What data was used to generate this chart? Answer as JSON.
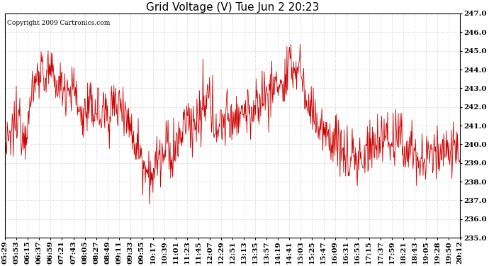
{
  "title": "Grid Voltage (V) Tue Jun 2 20:23",
  "copyright": "Copyright 2009 Cartronics.com",
  "line_color": "#cc0000",
  "bg_color": "#ffffff",
  "plot_bg_color": "#ffffff",
  "grid_color": "#bbbbbb",
  "ylim": [
    235.0,
    247.0
  ],
  "ytick_min": 235.0,
  "ytick_max": 247.0,
  "ytick_step": 1.0,
  "xtick_labels": [
    "05:29",
    "05:53",
    "06:15",
    "06:37",
    "06:59",
    "07:21",
    "07:43",
    "08:05",
    "08:27",
    "08:49",
    "09:11",
    "09:33",
    "09:55",
    "10:17",
    "10:39",
    "11:01",
    "11:23",
    "11:45",
    "12:07",
    "12:29",
    "12:51",
    "13:13",
    "13:35",
    "13:57",
    "14:19",
    "14:41",
    "15:03",
    "15:25",
    "15:47",
    "16:09",
    "16:31",
    "16:53",
    "17:15",
    "17:37",
    "17:59",
    "18:21",
    "18:43",
    "19:05",
    "19:28",
    "19:50",
    "20:12"
  ],
  "title_fontsize": 11,
  "tick_fontsize": 7.5,
  "copyright_fontsize": 6.5,
  "n_points": 900
}
